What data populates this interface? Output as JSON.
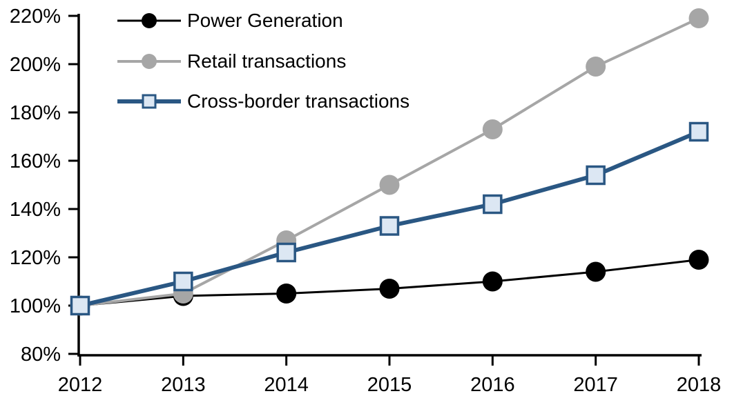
{
  "chart_data": {
    "type": "line",
    "title": "",
    "x": [
      "2012",
      "2013",
      "2014",
      "2015",
      "2016",
      "2017",
      "2018"
    ],
    "y_axis": {
      "min": 80,
      "max": 220,
      "step": 20,
      "unit": "%",
      "tick_labels": [
        "80%",
        "100%",
        "120%",
        "140%",
        "160%",
        "180%",
        "200%",
        "220%"
      ]
    },
    "grid": false,
    "legend_position": "top-left",
    "series": [
      {
        "name": "Power Generation",
        "values": [
          100,
          104,
          105,
          107,
          110,
          114,
          119
        ],
        "color": "#000000",
        "marker": "circle",
        "marker_fill": "#000000",
        "line_width": 3
      },
      {
        "name": "Retail transactions",
        "values": [
          100,
          105,
          127,
          150,
          173,
          199,
          219
        ],
        "color": "#A6A6A6",
        "marker": "circle",
        "marker_fill": "#A6A6A6",
        "line_width": 4
      },
      {
        "name": "Cross-border transactions",
        "values": [
          100,
          110,
          122,
          133,
          142,
          154,
          172
        ],
        "color": "#2A5783",
        "marker": "square",
        "marker_fill": "#DCE7F3",
        "marker_border": "#2A5783",
        "line_width": 6
      }
    ]
  }
}
